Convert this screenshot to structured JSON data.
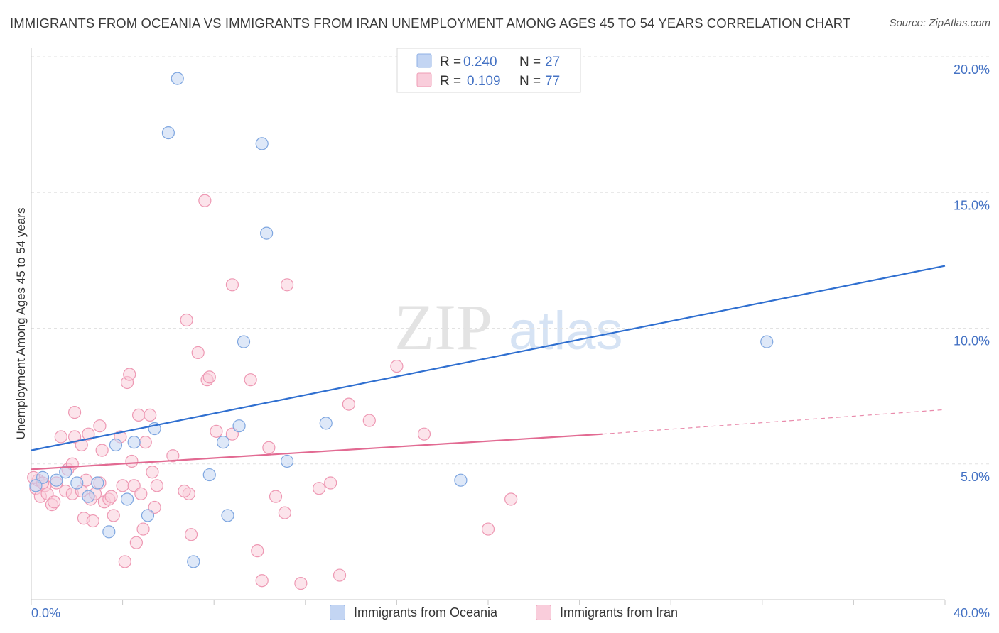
{
  "title": "IMMIGRANTS FROM OCEANIA VS IMMIGRANTS FROM IRAN UNEMPLOYMENT AMONG AGES 45 TO 54 YEARS CORRELATION CHART",
  "source": "Source: ZipAtlas.com",
  "watermark": {
    "zip": "ZIP",
    "atlas": "atlas"
  },
  "colors": {
    "blue": "#4a86d8",
    "blue_fill": "#c3d5f3",
    "pink": "#e8709a",
    "pink_fill": "#f9cddb",
    "axis_label": "#4472c4"
  },
  "legend": {
    "rows": [
      {
        "r_label": "R =",
        "r_value": "0.240",
        "n_label": "N =",
        "n_value": "27"
      },
      {
        "r_label": "R =",
        "r_value": "0.109",
        "n_label": "N =",
        "n_value": "77"
      }
    ]
  },
  "bottom_legend": [
    "Immigrants from Oceania",
    "Immigrants from Iran"
  ],
  "chart_data": {
    "type": "scatter",
    "title": "IMMIGRANTS FROM OCEANIA VS IMMIGRANTS FROM IRAN UNEMPLOYMENT AMONG AGES 45 TO 54 YEARS CORRELATION CHART",
    "xlabel": "",
    "ylabel": "Unemployment Among Ages 45 to 54 years",
    "xlim": [
      0,
      40
    ],
    "ylim": [
      0,
      20
    ],
    "x_tick_labels": [
      "0.0%",
      "40.0%"
    ],
    "y_ticks": [
      5,
      10,
      15,
      20
    ],
    "y_tick_labels": [
      "5.0%",
      "10.0%",
      "15.0%",
      "20.0%"
    ],
    "series": [
      {
        "name": "Immigrants from Oceania",
        "points": [
          [
            0.5,
            4.5
          ],
          [
            1.1,
            4.4
          ],
          [
            1.5,
            4.7
          ],
          [
            2.0,
            4.3
          ],
          [
            2.5,
            3.8
          ],
          [
            2.9,
            4.3
          ],
          [
            3.4,
            2.5
          ],
          [
            3.7,
            5.7
          ],
          [
            4.2,
            3.7
          ],
          [
            4.5,
            5.8
          ],
          [
            5.1,
            3.1
          ],
          [
            5.4,
            6.3
          ],
          [
            6.0,
            17.2
          ],
          [
            6.4,
            19.2
          ],
          [
            7.1,
            1.4
          ],
          [
            7.8,
            4.6
          ],
          [
            8.4,
            5.8
          ],
          [
            8.6,
            3.1
          ],
          [
            9.1,
            6.4
          ],
          [
            9.3,
            9.5
          ],
          [
            10.1,
            16.8
          ],
          [
            10.3,
            13.5
          ],
          [
            11.2,
            5.1
          ],
          [
            12.9,
            6.5
          ],
          [
            18.8,
            4.4
          ],
          [
            32.2,
            9.5
          ],
          [
            0.2,
            4.2
          ]
        ],
        "trend": {
          "x": [
            0,
            40
          ],
          "y": [
            5.5,
            12.3
          ]
        }
      },
      {
        "name": "Immigrants from Iran",
        "points": [
          [
            0.2,
            4.1
          ],
          [
            0.3,
            4.4
          ],
          [
            0.4,
            3.8
          ],
          [
            0.6,
            4.2
          ],
          [
            0.7,
            3.9
          ],
          [
            0.9,
            3.5
          ],
          [
            1.1,
            4.3
          ],
          [
            1.3,
            6.0
          ],
          [
            1.5,
            4.0
          ],
          [
            1.6,
            4.8
          ],
          [
            1.8,
            3.9
          ],
          [
            1.8,
            5.0
          ],
          [
            1.9,
            6.9
          ],
          [
            1.9,
            6.0
          ],
          [
            2.2,
            4.0
          ],
          [
            2.2,
            5.7
          ],
          [
            2.3,
            3.0
          ],
          [
            2.5,
            6.1
          ],
          [
            2.6,
            3.7
          ],
          [
            2.7,
            2.9
          ],
          [
            2.8,
            3.9
          ],
          [
            3.0,
            6.4
          ],
          [
            3.0,
            4.3
          ],
          [
            3.1,
            5.5
          ],
          [
            3.2,
            3.6
          ],
          [
            3.4,
            3.7
          ],
          [
            3.5,
            3.8
          ],
          [
            3.6,
            3.1
          ],
          [
            3.9,
            6.0
          ],
          [
            4.0,
            4.2
          ],
          [
            4.1,
            1.4
          ],
          [
            4.2,
            8.0
          ],
          [
            4.3,
            8.3
          ],
          [
            4.4,
            5.1
          ],
          [
            4.5,
            4.2
          ],
          [
            4.7,
            6.8
          ],
          [
            4.8,
            3.9
          ],
          [
            4.9,
            2.6
          ],
          [
            5.0,
            5.8
          ],
          [
            5.2,
            6.8
          ],
          [
            5.3,
            4.7
          ],
          [
            5.4,
            3.4
          ],
          [
            5.5,
            4.2
          ],
          [
            6.2,
            5.3
          ],
          [
            6.8,
            10.3
          ],
          [
            6.9,
            3.9
          ],
          [
            7.0,
            2.4
          ],
          [
            7.3,
            9.1
          ],
          [
            7.6,
            14.7
          ],
          [
            7.7,
            8.1
          ],
          [
            7.8,
            8.2
          ],
          [
            8.1,
            6.2
          ],
          [
            8.8,
            11.6
          ],
          [
            8.8,
            6.1
          ],
          [
            9.6,
            8.1
          ],
          [
            9.9,
            1.8
          ],
          [
            10.1,
            0.7
          ],
          [
            10.4,
            5.6
          ],
          [
            10.7,
            3.8
          ],
          [
            11.1,
            3.2
          ],
          [
            11.2,
            11.6
          ],
          [
            11.8,
            0.6
          ],
          [
            12.6,
            4.1
          ],
          [
            13.1,
            4.3
          ],
          [
            13.5,
            0.9
          ],
          [
            13.9,
            7.2
          ],
          [
            14.8,
            6.6
          ],
          [
            16.0,
            8.6
          ],
          [
            17.2,
            6.1
          ],
          [
            20.0,
            2.6
          ],
          [
            21.0,
            3.7
          ],
          [
            0.1,
            4.5
          ],
          [
            0.5,
            4.3
          ],
          [
            1.0,
            3.6
          ],
          [
            2.4,
            4.4
          ],
          [
            4.6,
            2.1
          ],
          [
            6.7,
            4.0
          ]
        ],
        "trend": {
          "x": [
            0,
            25
          ],
          "y": [
            4.8,
            6.1
          ]
        },
        "trend_extension": {
          "x": [
            25,
            40
          ],
          "y": [
            6.1,
            7.0
          ]
        }
      }
    ]
  }
}
